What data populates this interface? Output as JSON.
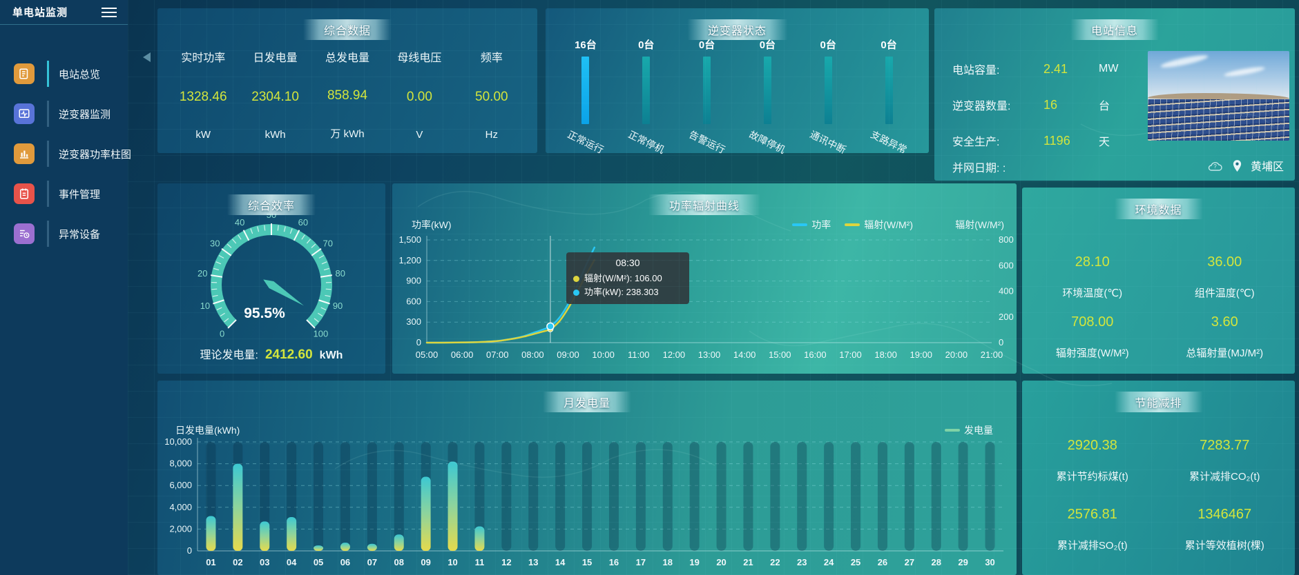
{
  "sidebar": {
    "title": "单电站监测",
    "items": [
      {
        "label": "电站总览",
        "icon": "report-icon",
        "color": "#e09a3c",
        "active": true
      },
      {
        "label": "逆变器监测",
        "icon": "monitor-icon",
        "color": "#5873d8",
        "active": false
      },
      {
        "label": "逆变器功率柱图",
        "icon": "bar-chart-icon",
        "color": "#e09a3c",
        "active": false
      },
      {
        "label": "事件管理",
        "icon": "event-icon",
        "color": "#e8534a",
        "active": false
      },
      {
        "label": "异常设备",
        "icon": "device-alert-icon",
        "color": "#9b6fd0",
        "active": false
      }
    ]
  },
  "summary": {
    "title": "综合数据",
    "metrics": [
      {
        "label": "实时功率",
        "value": "1328.46",
        "unit": "kW"
      },
      {
        "label": "日发电量",
        "value": "2304.10",
        "unit": "kWh"
      },
      {
        "label": "总发电量",
        "value": "858.94",
        "unit": "万 kWh"
      },
      {
        "label": "母线电压",
        "value": "0.00",
        "unit": "V"
      },
      {
        "label": "频率",
        "value": "50.00",
        "unit": "Hz"
      }
    ]
  },
  "inverter_status": {
    "title": "逆变器状态",
    "bars": [
      {
        "count": "16台",
        "label": "正常运行",
        "highlight": true
      },
      {
        "count": "0台",
        "label": "正常停机",
        "highlight": false
      },
      {
        "count": "0台",
        "label": "告警运行",
        "highlight": false
      },
      {
        "count": "0台",
        "label": "故障停机",
        "highlight": false
      },
      {
        "count": "0台",
        "label": "通讯中断",
        "highlight": false
      },
      {
        "count": "0台",
        "label": "支路异常",
        "highlight": false
      }
    ]
  },
  "station_info": {
    "title": "电站信息",
    "rows": [
      {
        "label": "电站容量:",
        "value": "2.41",
        "unit": "MW"
      },
      {
        "label": "逆变器数量:",
        "value": "16",
        "unit": "台"
      },
      {
        "label": "安全生产:",
        "value": "1196",
        "unit": "天"
      }
    ],
    "grid_date_label": "并网日期:  :",
    "location": "黄埔区"
  },
  "efficiency": {
    "title": "综合效率",
    "value": 95.5,
    "display": "95.5%",
    "min": 0,
    "max": 100,
    "tick_labels": [
      0,
      10,
      20,
      30,
      40,
      50,
      60,
      70,
      80,
      90,
      100
    ],
    "theory_label": "理论发电量:",
    "theory_value": "2412.60",
    "theory_unit": "kWh"
  },
  "environment": {
    "title": "环境数据",
    "metrics": [
      {
        "value": "28.10",
        "label": "环境温度(℃)"
      },
      {
        "value": "36.00",
        "label": "组件温度(℃)"
      },
      {
        "value": "708.00",
        "label": "辐射强度(W/M²)"
      },
      {
        "value": "3.60",
        "label": "总辐射量(MJ/M²)"
      }
    ]
  },
  "saving": {
    "title": "节能减排",
    "metrics": [
      {
        "value": "2920.38",
        "label": "累计节约标煤(t)"
      },
      {
        "value": "7283.77",
        "label": "累计减排CO₂(t)"
      },
      {
        "value": "2576.81",
        "label": "累计减排SO₂(t)"
      },
      {
        "value": "1346467",
        "label": "累计等效植树(棵)"
      }
    ]
  },
  "colors": {
    "value_yellow": "#d3e53c",
    "power_line": "#29c7f5",
    "radiation_line": "#ddd53e",
    "gauge": "#4cc8b6",
    "bar_highlight": "#1fc0f5",
    "bar_normal": "#12a0a6",
    "generation_legend": "#7fd3a6"
  },
  "chart_data": [
    {
      "id": "power_radiation",
      "type": "line",
      "title": "功率辐射曲线",
      "ylabel_left": "功率(kW)",
      "ylabel_right": "辐射(W/M²)",
      "ylim_left": [
        0,
        1500
      ],
      "ylim_right": [
        0,
        800
      ],
      "yticks_left": [
        "0",
        "300",
        "600",
        "900",
        "1,200",
        "1,500"
      ],
      "yticks_right": [
        "0",
        "200",
        "400",
        "600",
        "800"
      ],
      "xticks": [
        "05:00",
        "06:00",
        "07:00",
        "08:00",
        "09:00",
        "10:00",
        "11:00",
        "12:00",
        "13:00",
        "14:00",
        "15:00",
        "16:00",
        "17:00",
        "18:00",
        "19:00",
        "20:00",
        "21:00"
      ],
      "x_hours": [
        5,
        5.5,
        6,
        6.5,
        7,
        7.25,
        7.5,
        7.75,
        8,
        8.25,
        8.5,
        8.75,
        9,
        9.25,
        9.5,
        9.75
      ],
      "legend": [
        {
          "name": "功率",
          "color": "#29c7f5"
        },
        {
          "name": "辐射(W/M²)",
          "color": "#ddd53e"
        }
      ],
      "series": [
        {
          "name": "功率",
          "axis": "left",
          "color": "#29c7f5",
          "values": [
            0,
            1,
            3,
            9,
            25,
            42,
            65,
            95,
            140,
            185,
            238.3,
            360,
            560,
            820,
            1120,
            1390
          ]
        },
        {
          "name": "辐射(W/M²)",
          "axis": "right",
          "color": "#ddd53e",
          "values": [
            0,
            0,
            2,
            5,
            13,
            22,
            33,
            47,
            65,
            84,
            106,
            165,
            265,
            390,
            520,
            645
          ]
        }
      ],
      "tooltip": {
        "time": "08:30",
        "x_hour": 8.5,
        "rows": [
          {
            "name": "辐射(W/M²)",
            "value": "106.00",
            "color": "#ddd53e"
          },
          {
            "name": "功率(kW)",
            "value": "238.303",
            "color": "#29c7f5"
          }
        ]
      }
    },
    {
      "id": "monthly_generation",
      "type": "bar",
      "title": "月发电量",
      "ylabel": "日发电量(kWh)",
      "ylim": [
        0,
        10000
      ],
      "yticks": [
        "0",
        "2,000",
        "4,000",
        "6,000",
        "8,000",
        "10,000"
      ],
      "legend": [
        {
          "name": "发电量",
          "color": "#7fd3a6"
        }
      ],
      "categories": [
        "01",
        "02",
        "03",
        "04",
        "05",
        "06",
        "07",
        "08",
        "09",
        "10",
        "11",
        "12",
        "13",
        "14",
        "15",
        "16",
        "17",
        "18",
        "19",
        "20",
        "21",
        "22",
        "23",
        "24",
        "25",
        "26",
        "27",
        "28",
        "29",
        "30"
      ],
      "values": [
        3200,
        8000,
        2700,
        3100,
        500,
        750,
        650,
        1500,
        6800,
        8200,
        2250,
        0,
        0,
        0,
        0,
        0,
        0,
        0,
        0,
        0,
        0,
        0,
        0,
        0,
        0,
        0,
        0,
        0,
        0,
        0
      ]
    }
  ]
}
